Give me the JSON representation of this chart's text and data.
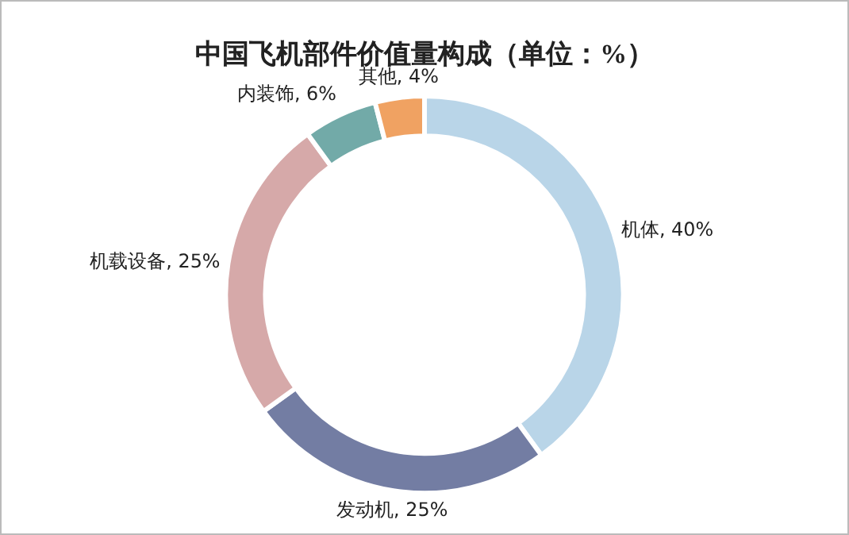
{
  "chart_data": {
    "type": "donut",
    "title": "中国飞机部件价值量构成（单位：%）",
    "categories": [
      "机体",
      "发动机",
      "机载设备",
      "内装饰",
      "其他"
    ],
    "values": [
      40,
      25,
      25,
      6,
      4
    ],
    "colors": [
      "#b9d5e8",
      "#737da3",
      "#d6a9a9",
      "#72aaa8",
      "#f0a262"
    ],
    "value_labels": [
      "40%",
      "25%",
      "25%",
      "6%",
      "4%"
    ],
    "legend": false
  }
}
